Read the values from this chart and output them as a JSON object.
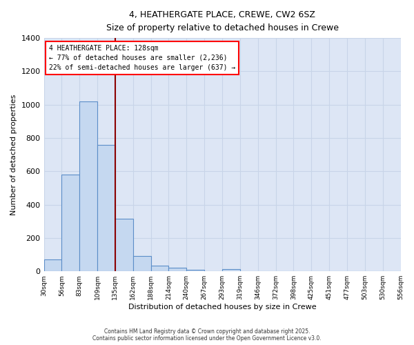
{
  "title1": "4, HEATHERGATE PLACE, CREWE, CW2 6SZ",
  "title2": "Size of property relative to detached houses in Crewe",
  "xlabel": "Distribution of detached houses by size in Crewe",
  "ylabel": "Number of detached properties",
  "bar_color": "#c5d8f0",
  "bar_edge_color": "#5b8dc8",
  "background_color": "#dde6f5",
  "bin_labels": [
    "30sqm",
    "56sqm",
    "83sqm",
    "109sqm",
    "135sqm",
    "162sqm",
    "188sqm",
    "214sqm",
    "240sqm",
    "267sqm",
    "293sqm",
    "319sqm",
    "346sqm",
    "372sqm",
    "398sqm",
    "425sqm",
    "451sqm",
    "477sqm",
    "503sqm",
    "530sqm",
    "556sqm"
  ],
  "bar_values": [
    70,
    580,
    1020,
    760,
    315,
    90,
    35,
    20,
    10,
    0,
    15,
    0,
    0,
    0,
    0,
    0,
    0,
    0,
    0,
    0
  ],
  "red_line_bin_index": 4,
  "annotation_line1": "4 HEATHERGATE PLACE: 128sqm",
  "annotation_line2": "← 77% of detached houses are smaller (2,236)",
  "annotation_line3": "22% of semi-detached houses are larger (637) →",
  "ylim": [
    0,
    1400
  ],
  "yticks": [
    0,
    200,
    400,
    600,
    800,
    1000,
    1200,
    1400
  ],
  "footer1": "Contains HM Land Registry data © Crown copyright and database right 2025.",
  "footer2": "Contains public sector information licensed under the Open Government Licence v3.0.",
  "grid_color": "#c8d4e8"
}
